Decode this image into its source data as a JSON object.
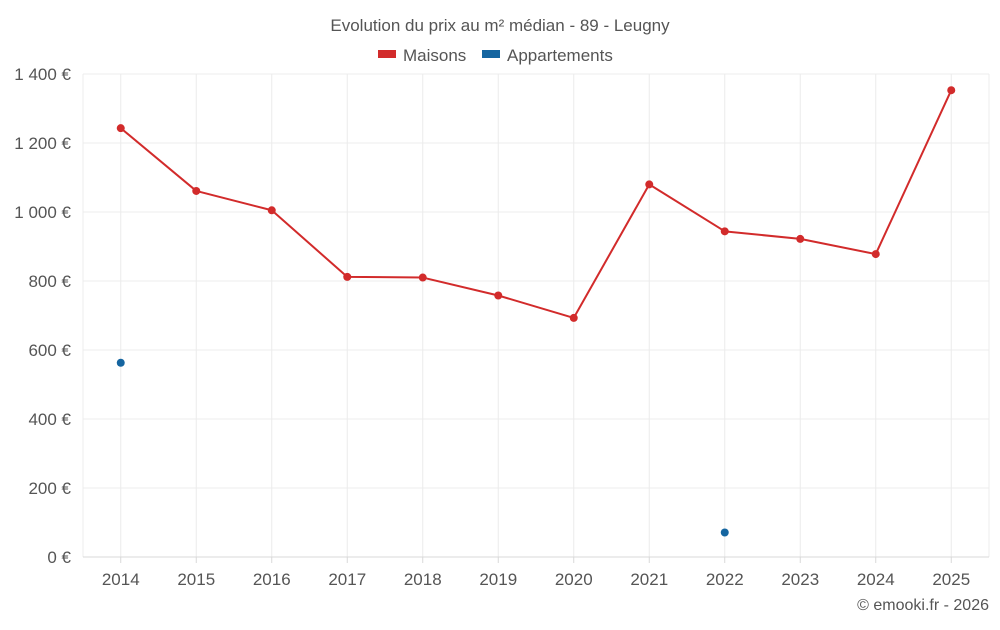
{
  "chart_data": {
    "type": "line",
    "title": "Evolution du prix au m² médian - 89 - Leugny",
    "categories": [
      "2014",
      "2015",
      "2016",
      "2017",
      "2018",
      "2019",
      "2020",
      "2021",
      "2022",
      "2023",
      "2024",
      "2025"
    ],
    "series": [
      {
        "name": "Maisons",
        "color": "#d22b2b",
        "values": [
          1243,
          1061,
          1005,
          812,
          810,
          758,
          693,
          1080,
          944,
          922,
          878,
          1353
        ]
      },
      {
        "name": "Appartements",
        "color": "#1565a0",
        "values": [
          563,
          null,
          null,
          null,
          null,
          null,
          null,
          null,
          71,
          null,
          null,
          null
        ]
      }
    ],
    "y_ticks": [
      0,
      200,
      400,
      600,
      800,
      1000,
      1200,
      1400
    ],
    "y_tick_labels": [
      "0 €",
      "200 €",
      "400 €",
      "600 €",
      "800 €",
      "1 000 €",
      "1 200 €",
      "1 400 €"
    ],
    "ylim": [
      0,
      1400
    ],
    "grid": true,
    "legend_position": "top-center",
    "xlabel": "",
    "ylabel": ""
  },
  "credit": "© emooki.fr - 2026"
}
